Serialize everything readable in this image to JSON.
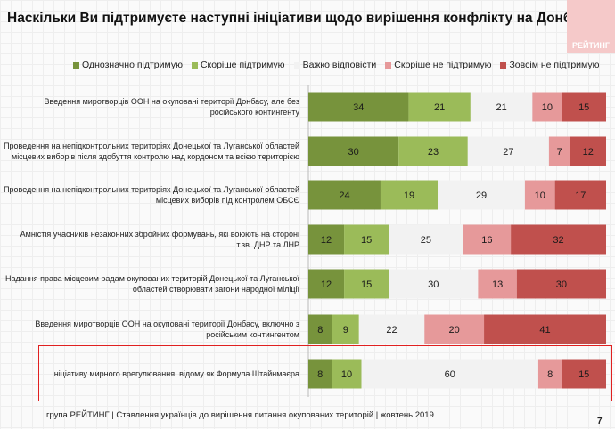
{
  "chart_data": {
    "type": "bar",
    "orientation": "horizontal",
    "stacked": true,
    "title": "Наскільки Ви підтримуєте наступні ініціативи щодо вирішення конфлікту на Донбасі? ...",
    "legend_position": "top",
    "categories": [
      "Введення миротворців ООН на окуповані території Донбасу, але без російського контингенту",
      "Проведення на непідконтрольних територіях Донецької та Луганської областей місцевих виборів після здобуття контролю над кордоном та всією територією",
      "Проведення на непідконтрольних територіях Донецької та Луганської областей місцевих виборів під контролем ОБСЄ",
      "Амністія учасників незаконних збройних формувань, які воюють на стороні т.зв. ДНР та ЛНР",
      "Надання права місцевим радам окупованих територій Донецької та Луганської областей створювати загони народної міліції",
      "Введення миротворців ООН на окуповані території Донбасу, включно з російським контингентом",
      "Ініціативу мирного врегулювання, відому як Формула Штайнмаєра"
    ],
    "series": [
      {
        "name": "Однозначно підтримую",
        "color": "#77933c",
        "text_color": "#1a1a1a",
        "values": [
          34,
          30,
          24,
          12,
          12,
          8,
          8
        ]
      },
      {
        "name": "Скоріше підтримую",
        "color": "#9bbb59",
        "text_color": "#1a1a1a",
        "values": [
          21,
          23,
          19,
          15,
          15,
          9,
          10
        ]
      },
      {
        "name": "Важко відповісти",
        "color": "#f2f2f2",
        "text_color": "#1a1a1a",
        "values": [
          21,
          27,
          29,
          25,
          30,
          22,
          60
        ]
      },
      {
        "name": "Скоріше не підтримую",
        "color": "#e6999a",
        "text_color": "#1a1a1a",
        "values": [
          10,
          7,
          10,
          16,
          13,
          20,
          8
        ]
      },
      {
        "name": "Зовсім не підтримую",
        "color": "#c0504d",
        "text_color": "#1a1a1a",
        "values": [
          15,
          12,
          17,
          32,
          30,
          41,
          15
        ]
      }
    ],
    "highlighted_category": "Ініціативу мирного врегулювання, відому як Формула Штайнмаєра",
    "highlight_color": "#e02020",
    "grid": false
  },
  "logo_text": "РЕЙТИНГ",
  "footer": "група РЕЙТИНГ | Ставлення українців до вирішення питання окупованих територій  | жовтень  2019",
  "page_number": "7"
}
